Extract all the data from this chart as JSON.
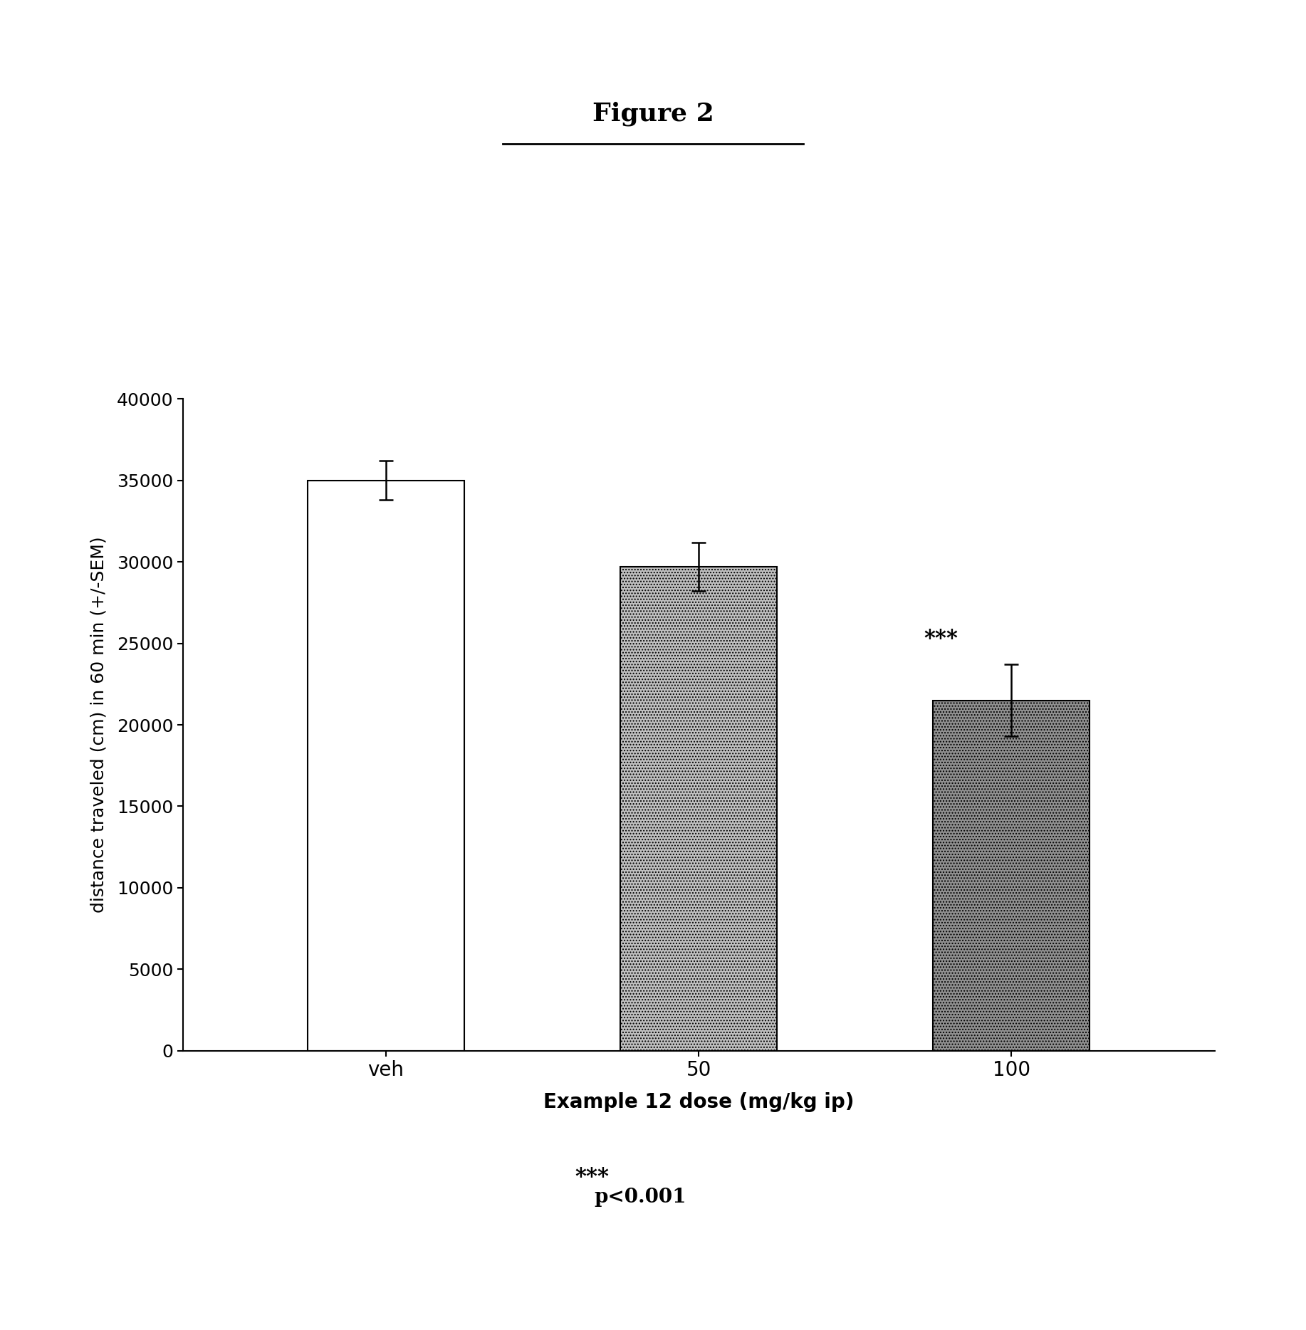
{
  "title": "Figure 2",
  "categories": [
    "veh",
    "50",
    "100"
  ],
  "values": [
    35000,
    29700,
    21500
  ],
  "errors": [
    1200,
    1500,
    2200
  ],
  "xlabel": "Example 12 dose (mg/kg ip)",
  "ylabel": "distance traveled (cm) in 60 min (+/-SEM)",
  "ylim": [
    0,
    40000
  ],
  "yticks": [
    0,
    5000,
    10000,
    15000,
    20000,
    25000,
    30000,
    35000,
    40000
  ],
  "significance_label": "***",
  "significance_bar_index": 2,
  "footnote_stars": "***",
  "footnote_text": "p<0.001",
  "title_fontsize": 26,
  "axis_label_fontsize": 19,
  "tick_fontsize": 18,
  "sig_fontsize": 22,
  "footnote_fontsize": 20,
  "bar_width": 0.5,
  "background_color": "#ffffff",
  "fill_colors": [
    "#ffffff",
    "#c0c0c0",
    "#909090"
  ],
  "hatches": [
    null,
    "....",
    "...."
  ],
  "hatch_colors": [
    "#000000",
    "#505050",
    "#404040"
  ]
}
